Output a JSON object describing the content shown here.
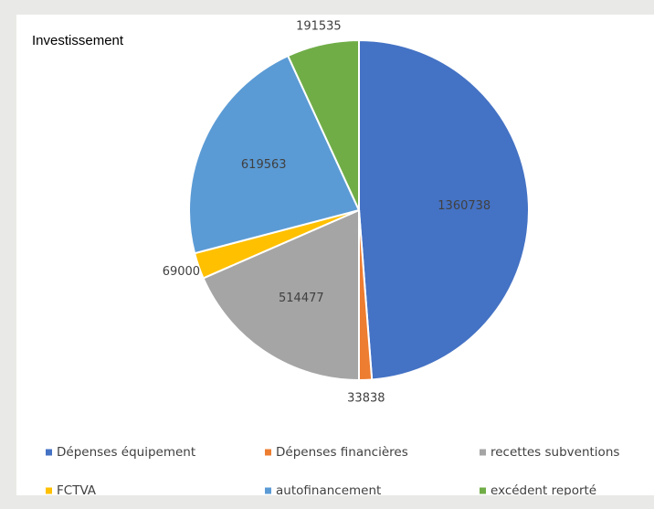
{
  "chart_data": {
    "type": "pie",
    "title": "Investissement",
    "categories": [
      "Dépenses équipement",
      "Dépenses financières",
      "recettes subventions",
      "FCTVA",
      "autofinancement",
      "excédent reporté"
    ],
    "values": [
      1360738,
      33838,
      514477,
      69000,
      619563,
      191535
    ],
    "colors": [
      "#4472c4",
      "#ed7d31",
      "#a5a5a5",
      "#ffc000",
      "#5b9bd5",
      "#70ad47"
    ],
    "legend": "bottom"
  }
}
